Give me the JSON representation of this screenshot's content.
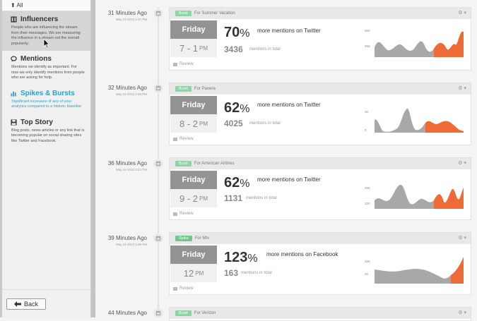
{
  "colors": {
    "accent": "#2aa1c9",
    "burst_badge": "#8fd4a8",
    "spike_badge": "#6fc88b",
    "chart_gray": "#a8a8a8",
    "chart_orange": "#ee6a37"
  },
  "sidebar": {
    "all_label": "All",
    "back_label": "Back",
    "items": [
      {
        "title": "Influencers",
        "desc": "People who are influencing the stream from their messages. We are measuring the influence in a stream not the overall popularity.",
        "icon": "building-icon",
        "active": true
      },
      {
        "title": "Mentions",
        "desc": "Mentions we identify as important. For now we only identify mentions from people who are asking for help.",
        "icon": "speech-bubble-icon"
      },
      {
        "title": "Spikes & Bursts",
        "desc": "Significant increases of any of your analytics compared to a historic baseline",
        "icon": "bar-chart-icon"
      },
      {
        "title": "Top Story",
        "desc": "Blog posts, news articles or any link that is becoming popular on social sharing sites like Twitter and Facebook.",
        "icon": "save-icon"
      }
    ]
  },
  "feed": [
    {
      "time": "31 Minutes Ago",
      "date": "May 24 2013 2:47 PM",
      "badge": "Burst",
      "for": "For Summer Vacation",
      "day": "Friday",
      "hours": "7 - 1",
      "ampm": "PM",
      "pct": "70",
      "more": "more mentions on Twitter",
      "count": "3436",
      "count_label": "mentions in total",
      "review": "Review",
      "y_labels": [
        "500",
        "250"
      ]
    },
    {
      "time": "32 Minutes Ago",
      "date": "May 24 2013 2:46 PM",
      "badge": "Burst",
      "for": "For Panera",
      "day": "Friday",
      "hours": "8 - 2",
      "ampm": "PM",
      "pct": "62",
      "more": "more mentions on Twitter",
      "count": "4025",
      "count_label": "mentions in total",
      "review": "Review",
      "y_labels": [
        "1K",
        "0"
      ]
    },
    {
      "time": "36 Minutes Ago",
      "date": "May 24 2013 2:42 PM",
      "badge": "Burst",
      "for": "For American Airlines",
      "day": "Friday",
      "hours": "9 - 2",
      "ampm": "PM",
      "pct": "62",
      "more": "more mentions on Twitter",
      "count": "1131",
      "count_label": "mentions in total",
      "review": "Review",
      "y_labels": [
        "200",
        "100"
      ]
    },
    {
      "time": "39 Minutes Ago",
      "date": "May 24 2013 2:39 PM",
      "badge": "Spike",
      "for": "For Mtv",
      "day": "Friday",
      "hours": "12",
      "ampm": "PM",
      "pct": "123",
      "more": "more mentions on Facebook",
      "count": "163",
      "count_label": "mentions in total",
      "review": "Review",
      "y_labels": [
        "100",
        "50"
      ]
    },
    {
      "time": "44 Minutes Ago",
      "date": "",
      "badge": "Burst",
      "for": "For Verizon"
    }
  ]
}
